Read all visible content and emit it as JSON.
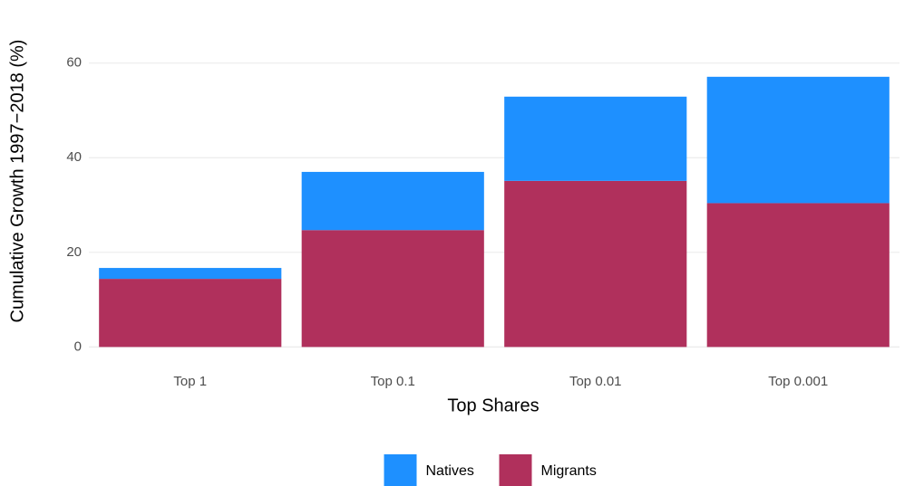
{
  "chart_data": {
    "type": "stacked-bar",
    "x_label": "Top Shares",
    "y_label": "Cumulative Growth 1997−2018 (%)",
    "categories": [
      "Top 1",
      "Top 0.1",
      "Top 0.01",
      "Top 0.001"
    ],
    "series": [
      {
        "name": "Natives",
        "color": "#1e90ff",
        "values": [
          2.3,
          12.3,
          17.8,
          26.7
        ]
      },
      {
        "name": "Migrants",
        "color": "#b0305c",
        "values": [
          14.4,
          24.7,
          35.1,
          30.4
        ]
      }
    ],
    "ylim": [
      -0.5,
      69.5
    ],
    "yticks": [
      0,
      20,
      40,
      60
    ],
    "grid": true,
    "legend": "bottom"
  }
}
